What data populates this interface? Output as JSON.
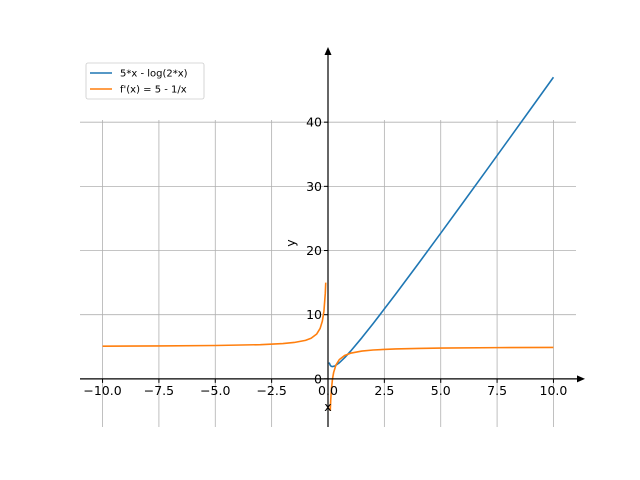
{
  "chart_data": {
    "type": "line",
    "xlabel": "x",
    "ylabel": "y",
    "xlim": [
      -11.0,
      11.0
    ],
    "ylim": [
      -7.5,
      50.0
    ],
    "x_ticks": [
      -10.0,
      -7.5,
      -5.0,
      -2.5,
      0.0,
      2.5,
      5.0,
      7.5,
      10.0
    ],
    "x_tick_labels": [
      "−10.0",
      "−7.5",
      "−5.0",
      "−2.5",
      "0.0",
      "2.5",
      "5.0",
      "7.5",
      "10.0"
    ],
    "y_ticks": [
      0,
      10,
      20,
      30,
      40
    ],
    "y_tick_labels": [
      "0",
      "10",
      "20",
      "30",
      "40"
    ],
    "grid": true,
    "legend": "top-left",
    "series": [
      {
        "name": "5*x - log(2*x)",
        "color": "#1f77b4",
        "x": [
          0.05,
          0.1,
          0.15,
          0.2,
          0.3,
          0.5,
          0.75,
          1.0,
          1.5,
          2.0,
          2.5,
          3.0,
          4.0,
          5.0,
          6.0,
          7.0,
          8.0,
          9.0,
          10.0
        ],
        "y": [
          2.55,
          2.11,
          1.95,
          1.92,
          2.01,
          2.5,
          3.34,
          4.31,
          6.4,
          8.61,
          10.9,
          13.21,
          17.92,
          22.7,
          27.52,
          32.36,
          37.23,
          42.11,
          47.0
        ]
      },
      {
        "name": "f'(x) = 5 - 1/x",
        "color": "#ff7f0e",
        "x": [
          -10.0,
          -7.5,
          -5.0,
          -3.0,
          -2.0,
          -1.5,
          -1.0,
          -0.75,
          -0.5,
          -0.35,
          -0.25,
          -0.18,
          -0.12,
          -0.1,
          0.1,
          0.12,
          0.15,
          0.2,
          0.25,
          0.35,
          0.5,
          0.75,
          1.0,
          1.5,
          2.0,
          3.0,
          4.0,
          5.0,
          7.5,
          10.0
        ],
        "y": [
          5.1,
          5.13,
          5.2,
          5.33,
          5.5,
          5.67,
          6.0,
          6.33,
          7.0,
          7.86,
          9.0,
          10.56,
          13.33,
          15.0,
          -5.0,
          -3.33,
          -1.67,
          0.0,
          1.0,
          2.14,
          3.0,
          3.67,
          4.0,
          4.33,
          4.5,
          4.67,
          4.75,
          4.8,
          4.87,
          4.9
        ]
      }
    ]
  }
}
